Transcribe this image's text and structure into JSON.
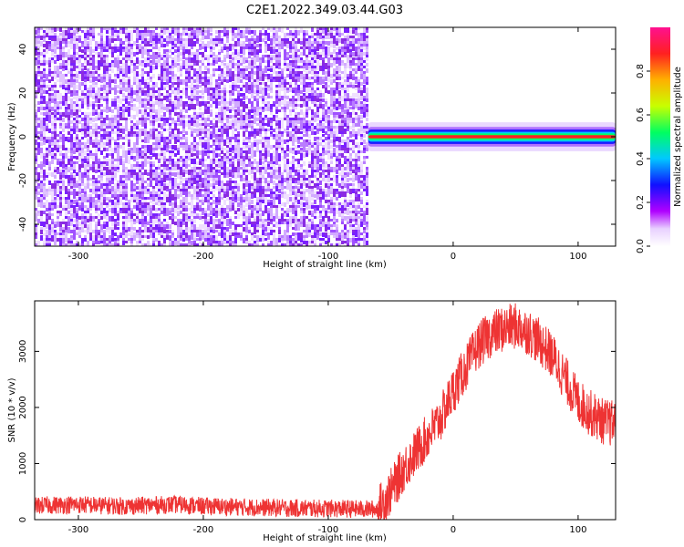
{
  "page_title": "C2E1.2022.349.03.44.G03",
  "colorbar": {
    "label": "Normalized spectral amplitude",
    "ticks": [
      0.0,
      0.2,
      0.4,
      0.6,
      0.8
    ],
    "tick_labels": [
      "0.0",
      "0.2",
      "0.4",
      "0.6",
      "0.8"
    ]
  },
  "chart_data": [
    {
      "type": "heatmap",
      "title": "C2E1.2022.349.03.44.G03",
      "xlabel": "Height of straight line (km)",
      "ylabel": "Frequency (Hz)",
      "xlim": [
        -335,
        130
      ],
      "ylim": [
        -50,
        50
      ],
      "x_ticks": [
        -300,
        -200,
        -100,
        0,
        100
      ],
      "y_ticks": [
        -40,
        -20,
        0,
        20,
        40
      ],
      "colorbar_label": "Normalized spectral amplitude",
      "colorbar_range": [
        0,
        1
      ],
      "regions": [
        {
          "x_range": [
            -335,
            -68
          ],
          "frequency_range": [
            -50,
            50
          ],
          "amplitude": "low, speckled noise"
        },
        {
          "x_range": [
            -68,
            130
          ],
          "frequency_center": 0,
          "frequency_halfwidth": 3,
          "amplitude": "high, peak near 1.0"
        }
      ]
    },
    {
      "type": "line",
      "xlabel": "Height of straight line (km)",
      "ylabel": "SNR (10 * v/v)",
      "xlim": [
        -335,
        130
      ],
      "ylim": [
        0,
        3900
      ],
      "x_ticks": [
        -300,
        -200,
        -100,
        0,
        100
      ],
      "y_ticks": [
        0,
        1000,
        2000,
        3000
      ],
      "series": [
        {
          "color": "#ee3333",
          "x": [
            -335,
            -320,
            -300,
            -280,
            -260,
            -240,
            -220,
            -200,
            -180,
            -160,
            -140,
            -120,
            -100,
            -80,
            -60,
            -50,
            -40,
            -30,
            -20,
            -10,
            0,
            10,
            20,
            30,
            40,
            50,
            60,
            70,
            80,
            90,
            100,
            110,
            120,
            130
          ],
          "y": [
            250,
            260,
            270,
            250,
            240,
            260,
            270,
            240,
            230,
            220,
            210,
            200,
            200,
            190,
            190,
            500,
            900,
            1200,
            1500,
            1800,
            2300,
            2700,
            3100,
            3300,
            3400,
            3450,
            3350,
            3150,
            2900,
            2500,
            2100,
            1900,
            1750,
            1700
          ]
        }
      ]
    }
  ]
}
